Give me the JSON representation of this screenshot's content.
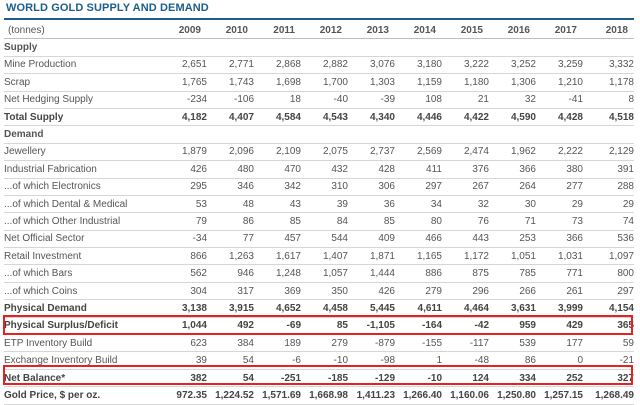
{
  "title": "WORLD GOLD SUPPLY AND DEMAND",
  "header": {
    "unit": "(tonnes)",
    "years": [
      "2009",
      "2010",
      "2011",
      "2012",
      "2013",
      "2014",
      "2015",
      "2016",
      "2017",
      "2018"
    ]
  },
  "rows": [
    {
      "label": "Supply",
      "type": "section",
      "values": []
    },
    {
      "label": "Mine Production",
      "type": "ind1",
      "values": [
        "2,651",
        "2,771",
        "2,868",
        "2,882",
        "3,076",
        "3,180",
        "3,222",
        "3,252",
        "3,259",
        "3,332"
      ]
    },
    {
      "label": "Scrap",
      "type": "ind1",
      "values": [
        "1,765",
        "1,743",
        "1,698",
        "1,700",
        "1,303",
        "1,159",
        "1,180",
        "1,306",
        "1,210",
        "1,178"
      ]
    },
    {
      "label": "Net Hedging Supply",
      "type": "ind1",
      "values": [
        "-234",
        "-106",
        "18",
        "-40",
        "-39",
        "108",
        "21",
        "32",
        "-41",
        "8"
      ]
    },
    {
      "label": "Total Supply",
      "type": "total",
      "values": [
        "4,182",
        "4,407",
        "4,584",
        "4,543",
        "4,340",
        "4,446",
        "4,422",
        "4,590",
        "4,428",
        "4,518"
      ]
    },
    {
      "label": "Demand",
      "type": "section",
      "values": []
    },
    {
      "label": "Jewellery",
      "type": "ind1",
      "values": [
        "1,879",
        "2,096",
        "2,109",
        "2,075",
        "2,737",
        "2,569",
        "2,474",
        "1,962",
        "2,222",
        "2,129"
      ]
    },
    {
      "label": "Industrial Fabrication",
      "type": "ind1",
      "values": [
        "426",
        "480",
        "470",
        "432",
        "428",
        "411",
        "376",
        "366",
        "380",
        "391"
      ]
    },
    {
      "label": "...of which Electronics",
      "type": "ind2",
      "values": [
        "295",
        "346",
        "342",
        "310",
        "306",
        "297",
        "267",
        "264",
        "277",
        "288"
      ]
    },
    {
      "label": "...of which Dental & Medical",
      "type": "ind2",
      "values": [
        "53",
        "48",
        "43",
        "39",
        "36",
        "34",
        "32",
        "30",
        "29",
        "29"
      ]
    },
    {
      "label": "...of which Other Industrial",
      "type": "ind2",
      "values": [
        "79",
        "86",
        "85",
        "84",
        "85",
        "80",
        "76",
        "71",
        "73",
        "74"
      ]
    },
    {
      "label": "Net Official Sector",
      "type": "ind1",
      "values": [
        "-34",
        "77",
        "457",
        "544",
        "409",
        "466",
        "443",
        "253",
        "366",
        "536"
      ]
    },
    {
      "label": "Retail Investment",
      "type": "ind1",
      "values": [
        "866",
        "1,263",
        "1,617",
        "1,407",
        "1,871",
        "1,165",
        "1,172",
        "1,051",
        "1,031",
        "1,097"
      ]
    },
    {
      "label": "...of which Bars",
      "type": "ind2",
      "values": [
        "562",
        "946",
        "1,248",
        "1,057",
        "1,444",
        "886",
        "875",
        "785",
        "771",
        "800"
      ]
    },
    {
      "label": "...of which Coins",
      "type": "ind2",
      "values": [
        "304",
        "317",
        "369",
        "350",
        "426",
        "279",
        "296",
        "266",
        "261",
        "297"
      ]
    },
    {
      "label": "Physical Demand",
      "type": "total",
      "values": [
        "3,138",
        "3,915",
        "4,652",
        "4,458",
        "5,445",
        "4,611",
        "4,464",
        "3,631",
        "3,999",
        "4,154"
      ]
    },
    {
      "label": "Physical Surplus/Deficit",
      "type": "hl",
      "values": [
        "1,044",
        "492",
        "-69",
        "85",
        "-1,105",
        "-164",
        "-42",
        "959",
        "429",
        "365"
      ]
    },
    {
      "label": "ETP Inventory Build",
      "type": "ind1",
      "values": [
        "623",
        "384",
        "189",
        "279",
        "-879",
        "-155",
        "-117",
        "539",
        "177",
        "59"
      ]
    },
    {
      "label": "Exchange Inventory Build",
      "type": "ind1",
      "values": [
        "39",
        "54",
        "-6",
        "-10",
        "-98",
        "1",
        "-48",
        "86",
        "0",
        "-21"
      ]
    },
    {
      "label": "Net Balance*",
      "type": "hl",
      "values": [
        "382",
        "54",
        "-251",
        "-185",
        "-129",
        "-10",
        "124",
        "334",
        "252",
        "327"
      ]
    },
    {
      "label": "Gold Price, $ per oz.",
      "type": "last",
      "values": [
        "972.35",
        "1,224.52",
        "1,571.69",
        "1,668.98",
        "1,411.23",
        "1,266.40",
        "1,160.06",
        "1,250.80",
        "1,257.15",
        "1,268.49"
      ]
    }
  ],
  "colors": {
    "title": "#1b5e8c",
    "highlight_box": "#e52222"
  }
}
